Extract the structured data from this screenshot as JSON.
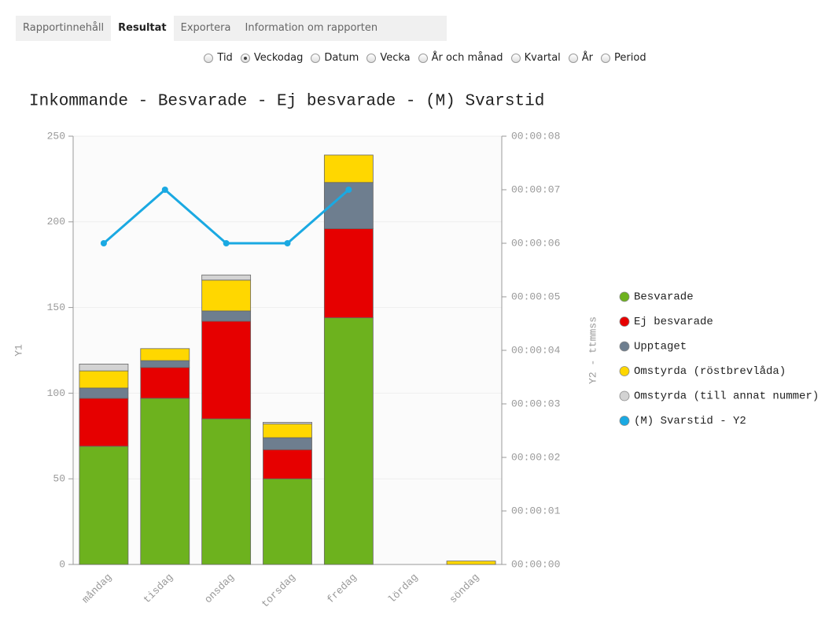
{
  "tabs": [
    {
      "label": "Rapportinnehåll",
      "active": false
    },
    {
      "label": "Resultat",
      "active": true
    },
    {
      "label": "Exportera",
      "active": false
    },
    {
      "label": "Information om rapporten",
      "active": false
    }
  ],
  "grouping": [
    {
      "label": "Tid",
      "checked": false
    },
    {
      "label": "Veckodag",
      "checked": true
    },
    {
      "label": "Datum",
      "checked": false
    },
    {
      "label": "Vecka",
      "checked": false
    },
    {
      "label": "År och månad",
      "checked": false
    },
    {
      "label": "Kvartal",
      "checked": false
    },
    {
      "label": "År",
      "checked": false
    },
    {
      "label": "Period",
      "checked": false
    }
  ],
  "chart_data": {
    "type": "bar",
    "stacked": true,
    "title": "Inkommande - Besvarade - Ej besvarade - (M) Svarstid",
    "y_label": "Y1",
    "y2_label": "Y2 - ttmmss",
    "categories": [
      "måndag",
      "tisdag",
      "onsdag",
      "torsdag",
      "fredag",
      "lördag",
      "söndag"
    ],
    "series": [
      {
        "name": "Besvarade",
        "color": "#6db21e",
        "values": [
          69,
          97,
          85,
          50,
          144,
          0,
          0
        ]
      },
      {
        "name": "Ej besvarade",
        "color": "#e60000",
        "values": [
          28,
          18,
          57,
          17,
          52,
          0,
          0
        ]
      },
      {
        "name": "Upptaget",
        "color": "#6e7e8f",
        "values": [
          6,
          4,
          6,
          7,
          27,
          0,
          0
        ]
      },
      {
        "name": "Omstyrda (röstbrevlåda)",
        "color": "#ffd700",
        "values": [
          10,
          7,
          18,
          8,
          16,
          0,
          2
        ]
      },
      {
        "name": "Omstyrda (till annat nummer)",
        "color": "#d3d3d3",
        "values": [
          4,
          0,
          3,
          1,
          0,
          0,
          0
        ]
      },
      {
        "name": "(M) Svarstid - Y2",
        "color": "#1aa9e2",
        "type": "line",
        "axis": "y2",
        "values": [
          6,
          7,
          6,
          6,
          7,
          null,
          null
        ]
      }
    ],
    "ylim": [
      0,
      250
    ],
    "yticks": [
      0,
      50,
      100,
      150,
      200,
      250
    ],
    "y2lim": [
      0,
      8
    ],
    "y2ticks": [
      {
        "value": 0,
        "label": "00:00:00"
      },
      {
        "value": 1,
        "label": "00:00:01"
      },
      {
        "value": 2,
        "label": "00:00:02"
      },
      {
        "value": 3,
        "label": "00:00:03"
      },
      {
        "value": 4,
        "label": "00:00:04"
      },
      {
        "value": 5,
        "label": "00:00:05"
      },
      {
        "value": 6,
        "label": "00:00:06"
      },
      {
        "value": 7,
        "label": "00:00:07"
      },
      {
        "value": 8,
        "label": "00:00:08"
      }
    ],
    "grid": true,
    "legend": "right"
  }
}
